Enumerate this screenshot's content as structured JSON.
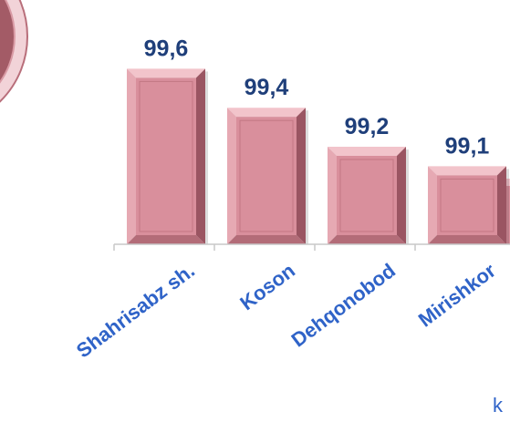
{
  "chart_data": {
    "type": "bar",
    "categories": [
      "Shahrisabz sh.",
      "Koson",
      "Dehqonobod",
      "Mirishkor"
    ],
    "values": [
      99.6,
      99.4,
      99.2,
      99.1
    ],
    "value_labels": [
      "99,6",
      "99,4",
      "99,2",
      "99,1"
    ],
    "title": "",
    "xlabel": "",
    "ylabel": "",
    "ylim": [
      98.7,
      99.7
    ],
    "grid": false,
    "legend": "none",
    "colors": {
      "bar_face": "#d98f9c",
      "bar_light": "#f2c4cb",
      "bar_dark": "#9a5562",
      "value_text": "#1f3f7a",
      "category_text": "#2f63c8",
      "axis": "#c8c8c8",
      "left_circle_fill": "#a35b66",
      "left_circle_ring": "#f2d3d8"
    }
  },
  "edge_text": "k"
}
